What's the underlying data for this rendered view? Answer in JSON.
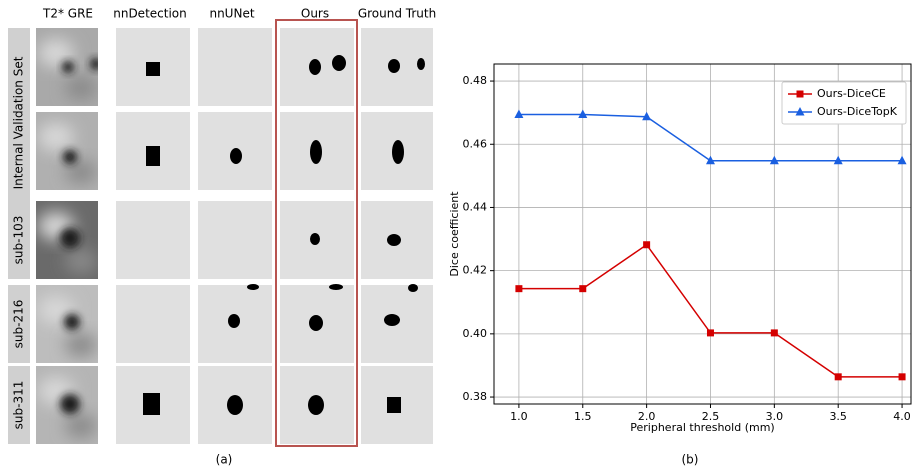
{
  "panel_a": {
    "column_headers": [
      "T2* GRE",
      "nnDetection",
      "nnUNet",
      "Ours",
      "Ground Truth"
    ],
    "row_labels": [
      "Internal Validation Set",
      "sub-103",
      "sub-216",
      "sub-311"
    ],
    "caption": "(a)"
  },
  "chart_data": {
    "type": "line",
    "caption": "(b)",
    "x_label": "Peripheral threshold (mm)",
    "y_label": "Dice coefficient",
    "x": [
      1.0,
      1.5,
      2.0,
      2.5,
      3.0,
      3.5,
      4.0
    ],
    "series": [
      {
        "name": "Ours-DiceCE",
        "color": "#d40000",
        "marker": "square",
        "values": [
          0.4143,
          0.4143,
          0.4282,
          0.4003,
          0.4003,
          0.3864,
          0.3864
        ]
      },
      {
        "name": "Ours-DiceTopK",
        "color": "#1a5fe0",
        "marker": "triangle",
        "values": [
          0.4694,
          0.4694,
          0.4687,
          0.4548,
          0.4548,
          0.4548,
          0.4548
        ]
      }
    ],
    "xlim": [
      0.805,
      4.07
    ],
    "xticks": [
      {
        "value": 1,
        "label": "1.0"
      },
      1.5,
      {
        "value": 2,
        "label": "2.0"
      },
      2.5,
      {
        "value": 3,
        "label": "3.0"
      },
      3.5,
      {
        "value": 4,
        "label": "4.0"
      }
    ],
    "ylim": [
      0.3778,
      0.4854
    ],
    "yticks": [
      0.38,
      {
        "value": 0.4,
        "label": "0.40"
      },
      0.42,
      0.44,
      0.46,
      0.48
    ],
    "grid": true,
    "legend": "upper right"
  }
}
